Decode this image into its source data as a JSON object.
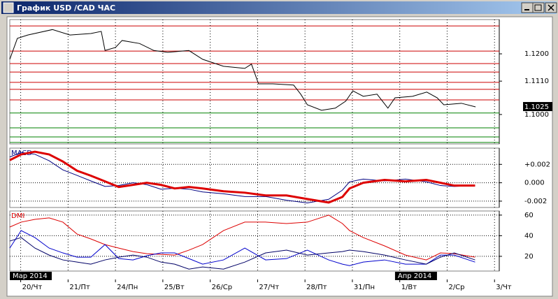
{
  "window": {
    "title": "График USD /CAD  ЧАС"
  },
  "chart_data": [
    {
      "type": "line",
      "color": "#000000",
      "x": [
        -0.23,
        -0.07,
        0.15,
        0.67,
        1.04,
        1.48,
        1.7,
        1.78,
        2.0,
        2.14,
        2.51,
        2.81,
        3.1,
        3.55,
        3.84,
        4.28,
        4.73,
        4.87,
        5.02,
        5.32,
        5.76,
        5.91,
        6.05,
        6.35,
        6.64,
        6.86,
        7.01,
        7.23,
        7.52,
        7.75,
        7.9,
        8.27,
        8.57,
        8.79,
        8.93,
        9.3,
        9.6
      ],
      "values": [
        1.1182,
        1.1251,
        1.1262,
        1.128,
        1.1262,
        1.1267,
        1.1274,
        1.1211,
        1.1221,
        1.1244,
        1.1234,
        1.1211,
        1.1205,
        1.1211,
        1.1182,
        1.1159,
        1.1152,
        1.1166,
        1.1101,
        1.1101,
        1.1097,
        1.1067,
        1.1032,
        1.1014,
        1.1021,
        1.1044,
        1.1078,
        1.106,
        1.1067,
        1.1021,
        1.1055,
        1.106,
        1.1074,
        1.1055,
        1.1032,
        1.1037,
        1.1025
      ],
      "value_labels": [
        null,
        null,
        null,
        null,
        null,
        null,
        null,
        null,
        null,
        null,
        null,
        null,
        null,
        null,
        null,
        null,
        null,
        null,
        null,
        null,
        null,
        null,
        null,
        null,
        null,
        null,
        null,
        null,
        null,
        null,
        null,
        null,
        null,
        null,
        null,
        null,
        "1.1025"
      ],
      "ylim": [
        1.0903,
        1.1313
      ],
      "yticks": [
        {
          "value": 1.1,
          "label": "1.1000"
        },
        {
          "value": 1.111,
          "label": "1.1110"
        },
        {
          "value": 1.12,
          "label": "1.1200"
        }
      ],
      "xlim": [
        -0.23,
        10.1
      ],
      "xticks": [
        {
          "value": 0,
          "label": "20/Чт"
        },
        {
          "value": 1,
          "label": "21/Пт"
        },
        {
          "value": 2,
          "label": "24/Пн"
        },
        {
          "value": 3,
          "label": "25/Вт"
        },
        {
          "value": 4,
          "label": "26/Ср"
        },
        {
          "value": 5,
          "label": "27/Чт"
        },
        {
          "value": 6,
          "label": "28/Пт"
        },
        {
          "value": 7,
          "label": "31/Пн"
        },
        {
          "value": 8,
          "label": "1/Вт"
        },
        {
          "value": 9,
          "label": "2/Ср"
        },
        {
          "value": 10,
          "label": "3/Чт"
        }
      ],
      "annotations": [
        {
          "value": -0.23,
          "label": "Мар 2014"
        },
        {
          "value": 7.9,
          "label": "Апр 2014"
        }
      ],
      "levels": [
        {
          "value": 1.1292,
          "color": "#cc0000"
        },
        {
          "value": 1.1209,
          "color": "#cc0000"
        },
        {
          "value": 1.1168,
          "color": "#cc0000"
        },
        {
          "value": 1.114,
          "color": "#cc0000"
        },
        {
          "value": 1.1106,
          "color": "#cc0000"
        },
        {
          "value": 1.1083,
          "color": "#cc0000"
        },
        {
          "value": 1.1048,
          "color": "#cc0000"
        },
        {
          "value": 1.1005,
          "color": "#008000"
        },
        {
          "value": 1.0956,
          "color": "#008000"
        },
        {
          "value": 1.0926,
          "color": "#008000"
        },
        {
          "value": 1.0908,
          "color": "#008000"
        }
      ],
      "grid": true
    },
    {
      "type": "line",
      "title": "MACD",
      "title_color": "#000080",
      "x": [
        -0.23,
        0.01,
        0.3,
        0.6,
        0.89,
        1.19,
        1.48,
        1.78,
        2.07,
        2.37,
        2.66,
        2.96,
        3.25,
        3.55,
        3.84,
        4.28,
        4.73,
        5.17,
        5.61,
        6.05,
        6.5,
        6.79,
        6.94,
        7.23,
        7.68,
        8.12,
        8.56,
        8.86,
        9.15,
        9.59
      ],
      "series": [
        {
          "color": "#000080",
          "width": 1,
          "values": [
            0.0028,
            0.0033,
            0.0031,
            0.0024,
            0.0014,
            0.0008,
            0.0002,
            -0.0004,
            -0.0003,
            0,
            -0.0002,
            -0.0007,
            -0.0006,
            -0.0007,
            -0.001,
            -0.0012,
            -0.0015,
            -0.0015,
            -0.0019,
            -0.0022,
            -0.0018,
            -0.0008,
            0.0001,
            0.0004,
            0.0002,
            0.0004,
            0.0001,
            -0.0003,
            -0.0004,
            -0.0003
          ]
        },
        {
          "color": "#dd0000",
          "width": 3,
          "values": [
            0.00246,
            0.00308,
            0.00338,
            0.00308,
            0.00231,
            0.00131,
            0.00077,
            0.00015,
            -0.00046,
            -0.00023,
            0,
            -0.00023,
            -0.00062,
            -0.00046,
            -0.00062,
            -0.00092,
            -0.00108,
            -0.00138,
            -0.00138,
            -0.00177,
            -0.00215,
            -0.00154,
            -0.00062,
            0,
            0.00031,
            0.00015,
            0.00031,
            0,
            -0.00031,
            -0.00031
          ]
        }
      ],
      "ylim": [
        -0.00269,
        0.00377
      ],
      "yticks": [
        {
          "value": -0.002,
          "label": "-0.002"
        },
        {
          "value": 0,
          "label": "0.000"
        },
        {
          "value": 0.002,
          "label": "+0.002"
        }
      ],
      "xlim": [
        -0.23,
        10.1
      ],
      "grid": true
    },
    {
      "type": "line",
      "title": "DMI",
      "title_color": "#dd0000",
      "x": [
        -0.23,
        0.01,
        0.3,
        0.6,
        0.89,
        1.19,
        1.48,
        1.78,
        2.07,
        2.37,
        2.66,
        2.96,
        3.25,
        3.55,
        3.84,
        4.28,
        4.73,
        5.17,
        5.61,
        6.05,
        6.5,
        6.79,
        6.94,
        7.23,
        7.68,
        8.12,
        8.56,
        8.86,
        9.15,
        9.59
      ],
      "series": [
        {
          "color": "#dd0000",
          "width": 1,
          "values": [
            48.4,
            53.2,
            55.9,
            57.3,
            53.2,
            41.6,
            36.9,
            31.4,
            28.0,
            24.6,
            22.6,
            21.9,
            21.2,
            26.0,
            31.4,
            45.0,
            53.2,
            53.2,
            51.8,
            53.2,
            60.0,
            51.8,
            45.0,
            38.2,
            30.1,
            21.2,
            16.5,
            23.3,
            22.6,
            19.2
          ]
        },
        {
          "color": "#0000cc",
          "width": 1,
          "values": [
            28.0,
            45.0,
            38.2,
            28.0,
            23.3,
            19.2,
            19.2,
            31.4,
            17.8,
            16.5,
            20.5,
            23.3,
            23.3,
            17.8,
            12.4,
            16.5,
            28.0,
            16.5,
            17.8,
            26.0,
            16.5,
            12.4,
            11.0,
            14.4,
            16.5,
            12.4,
            12.4,
            21.2,
            21.2,
            14.4
          ]
        },
        {
          "color": "#000066",
          "width": 1,
          "values": [
            34.8,
            38.2,
            28.0,
            21.2,
            16.5,
            14.4,
            12.4,
            16.5,
            19.2,
            21.2,
            19.2,
            14.4,
            12.4,
            7.6,
            9.7,
            7.6,
            14.4,
            23.3,
            26.0,
            21.2,
            23.3,
            24.6,
            26.0,
            24.6,
            21.2,
            16.5,
            12.4,
            19.2,
            23.3,
            16.5
          ]
        }
      ],
      "ylim": [
        5.7,
        64
      ],
      "yticks": [
        20,
        40,
        60
      ],
      "xlim": [
        -0.23,
        10.1
      ],
      "grid": true
    }
  ]
}
